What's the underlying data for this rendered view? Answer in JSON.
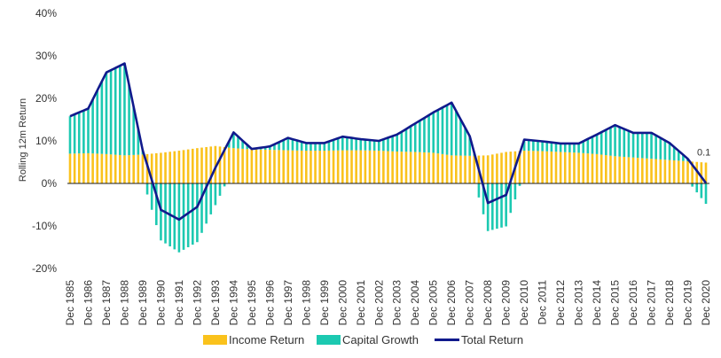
{
  "chart_data": {
    "type": "bar",
    "title": "",
    "ylabel": "Rolling 12m Return",
    "xlabel": "",
    "ylim": [
      -20,
      40
    ],
    "yticks": [
      "-20%",
      "-10%",
      "0%",
      "10%",
      "20%",
      "30%",
      "40%"
    ],
    "ytick_values": [
      -20,
      -10,
      0,
      10,
      20,
      30,
      40
    ],
    "x_tick_labels": [
      "Dec 1985",
      "Dec 1986",
      "Dec 1987",
      "Dec 1988",
      "Dec 1989",
      "Dec 1990",
      "Dec 1991",
      "Dec 1992",
      "Dec 1993",
      "Dec 1994",
      "Dec 1995",
      "Dec 1996",
      "Dec 1997",
      "Dec 1998",
      "Dec 1999",
      "Dec 2000",
      "Dec 2001",
      "Dec 2002",
      "Dec 2003",
      "Dec 2004",
      "Dec 2005",
      "Dec 2006",
      "Dec 2007",
      "Dec 2008",
      "Dec 2009",
      "Dec 2010",
      "Dec 2011",
      "Dec 2012",
      "Dec 2013",
      "Dec 2014",
      "Dec 2015",
      "Dec 2016",
      "Dec 2017",
      "Dec 2018",
      "Dec 2019",
      "Dec 2020"
    ],
    "periods_per_year": 4,
    "annual_points": {
      "years": [
        1985,
        1986,
        1987,
        1988,
        1989,
        1990,
        1991,
        1992,
        1993,
        1994,
        1995,
        1996,
        1997,
        1998,
        1999,
        2000,
        2001,
        2002,
        2003,
        2004,
        2005,
        2006,
        2007,
        2008,
        2009,
        2010,
        2011,
        2012,
        2013,
        2014,
        2015,
        2016,
        2017,
        2018,
        2019,
        2020
      ],
      "income_return": [
        7.0,
        7.1,
        6.9,
        6.6,
        6.8,
        7.2,
        7.7,
        8.3,
        8.8,
        8.3,
        8.0,
        7.9,
        7.8,
        7.7,
        7.7,
        7.8,
        7.8,
        7.7,
        7.5,
        7.4,
        7.2,
        6.6,
        6.5,
        6.6,
        7.4,
        7.7,
        7.6,
        7.4,
        7.2,
        6.9,
        6.4,
        6.1,
        5.8,
        5.5,
        5.2,
        4.9
      ],
      "capital_growth": [
        8.8,
        10.5,
        19.2,
        21.6,
        1.0,
        -13.4,
        -16.2,
        -13.8,
        -5.1,
        3.7,
        0.1,
        0.8,
        2.9,
        1.8,
        1.8,
        3.2,
        2.6,
        2.3,
        4.0,
        6.7,
        9.5,
        12.4,
        4.6,
        -11.2,
        -10.1,
        2.6,
        2.3,
        2.0,
        2.2,
        4.6,
        7.3,
        5.8,
        6.1,
        4.0,
        0.6,
        -4.8
      ]
    },
    "series": [
      {
        "name": "Income Return",
        "type": "bar",
        "color": "#fac21c"
      },
      {
        "name": "Capital Growth",
        "type": "bar",
        "color": "#1cc9b1"
      },
      {
        "name": "Total Return",
        "type": "line",
        "color": "#101a8c"
      }
    ],
    "annotations": [
      {
        "text": "0.1",
        "at": "Dec 2020"
      }
    ],
    "legend_position": "bottom-center",
    "grid": false
  }
}
